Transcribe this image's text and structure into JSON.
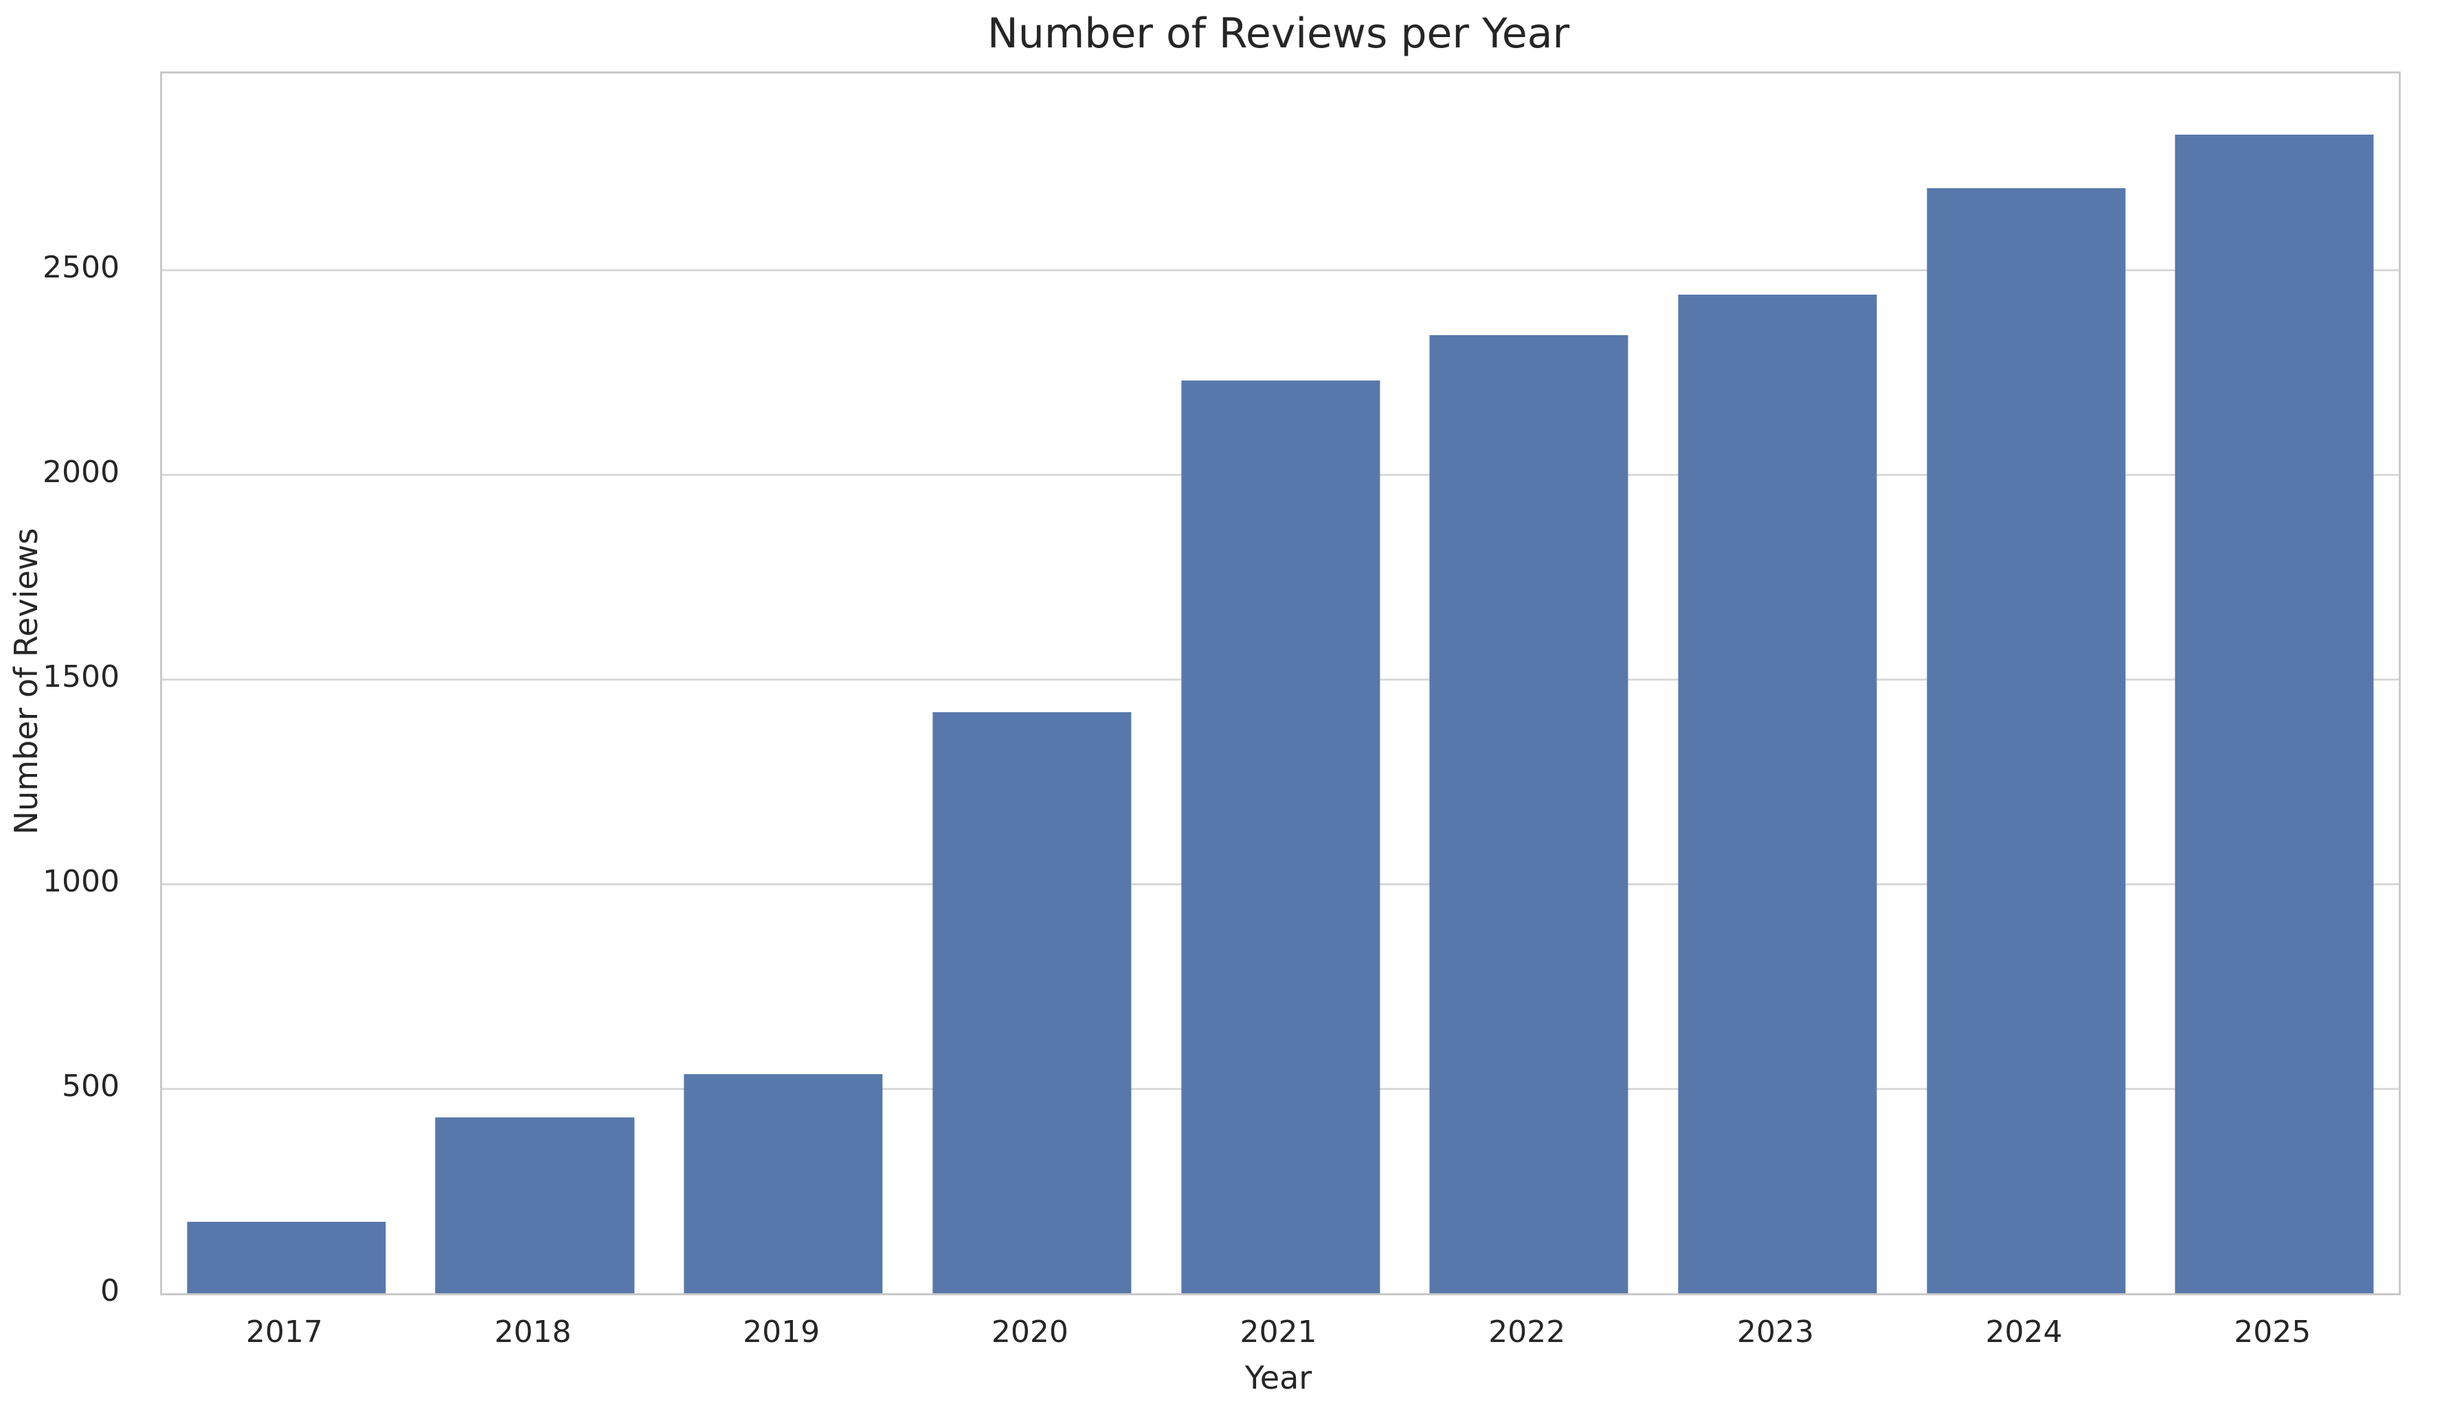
{
  "chart_data": {
    "type": "bar",
    "title": "Number of Reviews per Year",
    "xlabel": "Year",
    "ylabel": "Number of Reviews",
    "categories": [
      "2017",
      "2018",
      "2019",
      "2020",
      "2021",
      "2022",
      "2023",
      "2024",
      "2025"
    ],
    "values": [
      175,
      430,
      535,
      1420,
      2230,
      2340,
      2440,
      2700,
      2830
    ],
    "ylim": [
      0,
      2980
    ],
    "yticks": [
      0,
      500,
      1000,
      1500,
      2000,
      2500
    ],
    "grid": "horizontal",
    "legend_position": "none",
    "bar_width_fraction": 0.8,
    "colors": {
      "bar": "#5878ac",
      "gridline": "#d9d9d9",
      "spine": "#c9c9c9",
      "text": "#262626",
      "background": "#ffffff"
    }
  }
}
